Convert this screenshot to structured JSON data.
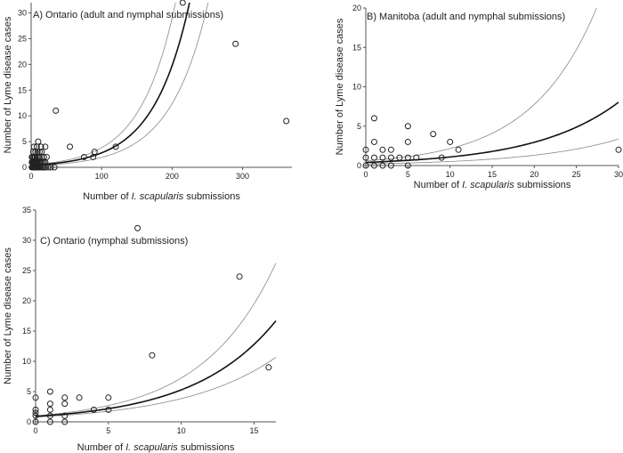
{
  "chart_data": [
    {
      "id": "A",
      "type": "scatter",
      "title": "A) Ontario (adult and nymphal submissions)",
      "xlabel_prefix": "Number of ",
      "xlabel_italic": "I. scapularis",
      "xlabel_suffix": " submissions",
      "ylabel": "Number of Lyme disease cases",
      "xlim": [
        0,
        370
      ],
      "ylim": [
        0,
        32
      ],
      "xticks": [
        "0",
        "100",
        "200",
        "300"
      ],
      "yticks": [
        "0",
        "5",
        "10",
        "15",
        "20",
        "25",
        "30"
      ],
      "points": [
        [
          1,
          0
        ],
        [
          2,
          0
        ],
        [
          3,
          0
        ],
        [
          4,
          0
        ],
        [
          5,
          0
        ],
        [
          6,
          0
        ],
        [
          7,
          0
        ],
        [
          8,
          0
        ],
        [
          9,
          0
        ],
        [
          10,
          0
        ],
        [
          12,
          0
        ],
        [
          14,
          0
        ],
        [
          16,
          0
        ],
        [
          18,
          0
        ],
        [
          20,
          0
        ],
        [
          24,
          0
        ],
        [
          28,
          0
        ],
        [
          33,
          0
        ],
        [
          1,
          1
        ],
        [
          2,
          1
        ],
        [
          3,
          1
        ],
        [
          4,
          1
        ],
        [
          5,
          1
        ],
        [
          6,
          1
        ],
        [
          7,
          1
        ],
        [
          8,
          1
        ],
        [
          10,
          1
        ],
        [
          12,
          1
        ],
        [
          14,
          1
        ],
        [
          16,
          1
        ],
        [
          18,
          1
        ],
        [
          20,
          1
        ],
        [
          1,
          2
        ],
        [
          2,
          2
        ],
        [
          4,
          2
        ],
        [
          5,
          2
        ],
        [
          6,
          2
        ],
        [
          8,
          2
        ],
        [
          10,
          2
        ],
        [
          12,
          2
        ],
        [
          15,
          2
        ],
        [
          18,
          2
        ],
        [
          22,
          2
        ],
        [
          3,
          3
        ],
        [
          6,
          3
        ],
        [
          9,
          3
        ],
        [
          12,
          3
        ],
        [
          15,
          3
        ],
        [
          4,
          4
        ],
        [
          8,
          4
        ],
        [
          14,
          4
        ],
        [
          20,
          4
        ],
        [
          10,
          5
        ],
        [
          35,
          11
        ],
        [
          55,
          4
        ],
        [
          75,
          2
        ],
        [
          88,
          2
        ],
        [
          90,
          3
        ],
        [
          120,
          4
        ],
        [
          215,
          32
        ],
        [
          290,
          24
        ],
        [
          362,
          9
        ]
      ],
      "fit": {
        "a": 0.4,
        "b": 0.0195
      },
      "ci_upper": {
        "a": 0.5,
        "b": 0.0203
      },
      "ci_lower": {
        "a": 0.3,
        "b": 0.0186
      }
    },
    {
      "id": "B",
      "type": "scatter",
      "title": "B) Manitoba (adult and nymphal submissions)",
      "xlabel_prefix": "Number of ",
      "xlabel_italic": "I. scapularis",
      "xlabel_suffix": " submissions",
      "ylabel": "Number of Lyme disease cases",
      "xlim": [
        0,
        30
      ],
      "ylim": [
        0,
        20
      ],
      "xticks": [
        "0",
        "5",
        "10",
        "15",
        "20",
        "25",
        "30"
      ],
      "yticks": [
        "0",
        "5",
        "10",
        "15",
        "20"
      ],
      "points": [
        [
          0,
          2
        ],
        [
          0,
          1
        ],
        [
          0,
          0
        ],
        [
          1,
          6
        ],
        [
          1,
          3
        ],
        [
          1,
          1
        ],
        [
          1,
          0
        ],
        [
          2,
          2
        ],
        [
          2,
          1
        ],
        [
          2,
          0
        ],
        [
          3,
          2
        ],
        [
          3,
          1
        ],
        [
          3,
          0
        ],
        [
          4,
          1
        ],
        [
          5,
          5
        ],
        [
          5,
          3
        ],
        [
          5,
          1
        ],
        [
          5,
          0
        ],
        [
          6,
          1
        ],
        [
          8,
          4
        ],
        [
          9,
          1
        ],
        [
          10,
          3
        ],
        [
          11,
          2
        ],
        [
          30,
          2
        ]
      ],
      "fit": {
        "a": 0.4,
        "b": 0.1
      },
      "ci_upper": {
        "a": 0.6,
        "b": 0.128
      },
      "ci_lower": {
        "a": 0.2,
        "b": 0.094
      }
    },
    {
      "id": "C",
      "type": "scatter",
      "title": "C) Ontario (nymphal submissions)",
      "xlabel_prefix": "Number of ",
      "xlabel_italic": "I. scapularis",
      "xlabel_suffix": " submissions",
      "ylabel": "Number of Lyme disease cases",
      "xlim": [
        0,
        16.5
      ],
      "ylim": [
        0,
        35
      ],
      "xticks": [
        "0",
        "5",
        "10",
        "15"
      ],
      "yticks": [
        "0",
        "5",
        "10",
        "15",
        "20",
        "25",
        "30",
        "35"
      ],
      "points": [
        [
          0,
          4
        ],
        [
          0,
          2
        ],
        [
          0,
          1.5
        ],
        [
          0,
          1
        ],
        [
          0,
          0
        ],
        [
          1,
          5
        ],
        [
          1,
          3
        ],
        [
          1,
          2
        ],
        [
          1,
          1
        ],
        [
          1,
          0
        ],
        [
          2,
          4
        ],
        [
          2,
          3
        ],
        [
          2,
          1
        ],
        [
          2,
          0
        ],
        [
          3,
          4
        ],
        [
          4,
          2
        ],
        [
          5,
          4
        ],
        [
          5,
          2
        ],
        [
          7,
          32
        ],
        [
          8,
          11
        ],
        [
          14,
          24
        ],
        [
          16,
          9
        ]
      ],
      "fit": {
        "a": 0.9,
        "b": 0.177
      },
      "ci_upper": {
        "a": 1.0,
        "b": 0.198
      },
      "ci_lower": {
        "a": 0.8,
        "b": 0.157
      }
    }
  ]
}
